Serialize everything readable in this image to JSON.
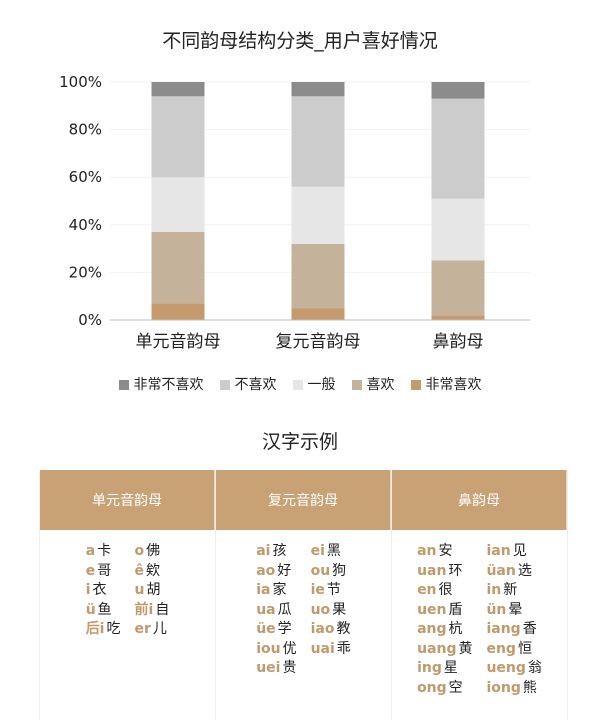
{
  "chart_data": {
    "type": "bar",
    "stacked": true,
    "title": "不同韵母结构分类_用户喜好情况",
    "categories": [
      "单元音韵母",
      "复元音韵母",
      "鼻韵母"
    ],
    "ylim": [
      0,
      100
    ],
    "yticks": [
      "0%",
      "20%",
      "40%",
      "60%",
      "80%",
      "100%"
    ],
    "legend_position": "bottom",
    "series": [
      {
        "name": "非常喜欢",
        "color": "#c59b6e",
        "values": [
          7,
          5,
          2
        ]
      },
      {
        "name": "喜欢",
        "color": "#c4b29b",
        "values": [
          30,
          27,
          23
        ]
      },
      {
        "name": "一般",
        "color": "#e6e6e6",
        "values": [
          23,
          24,
          26
        ]
      },
      {
        "name": "不喜欢",
        "color": "#cccccc",
        "values": [
          34,
          38,
          42
        ]
      },
      {
        "name": "非常不喜欢",
        "color": "#8c8c8c",
        "values": [
          6,
          6,
          7
        ]
      }
    ]
  },
  "legend_order": [
    4,
    3,
    2,
    1,
    0
  ],
  "examples": {
    "title": "汉字示例",
    "columns": [
      {
        "header": "单元音韵母",
        "lists": [
          [
            [
              "a",
              "卡"
            ],
            [
              "e",
              "哥"
            ],
            [
              "i",
              "衣"
            ],
            [
              "ü",
              "鱼"
            ],
            [
              "后i",
              "吃"
            ]
          ],
          [
            [
              "o",
              "佛"
            ],
            [
              "ê",
              "欸"
            ],
            [
              "u",
              "胡"
            ],
            [
              "前i",
              "自"
            ],
            [
              "er",
              "儿"
            ]
          ]
        ]
      },
      {
        "header": "复元音韵母",
        "lists": [
          [
            [
              "ai",
              "孩"
            ],
            [
              "ao",
              "好"
            ],
            [
              "ia",
              "家"
            ],
            [
              "ua",
              "瓜"
            ],
            [
              "üe",
              "学"
            ],
            [
              "iou",
              "优"
            ],
            [
              "uei",
              "贵"
            ]
          ],
          [
            [
              "ei",
              "黑"
            ],
            [
              "ou",
              "狗"
            ],
            [
              "ie",
              "节"
            ],
            [
              "uo",
              "果"
            ],
            [
              "iao",
              "教"
            ],
            [
              "uai",
              "乖"
            ]
          ]
        ]
      },
      {
        "header": "鼻韵母",
        "lists": [
          [
            [
              "an",
              "安"
            ],
            [
              "uan",
              "环"
            ],
            [
              "en",
              "很"
            ],
            [
              "uen",
              "盾"
            ],
            [
              "ang",
              "杭"
            ],
            [
              "uang",
              "黄"
            ],
            [
              "ing",
              "星"
            ],
            [
              "ong",
              "空"
            ]
          ],
          [
            [
              "ian",
              "见"
            ],
            [
              "üan",
              "选"
            ],
            [
              "in",
              "新"
            ],
            [
              "ün",
              "晕"
            ],
            [
              "iang",
              "香"
            ],
            [
              "eng",
              "恒"
            ],
            [
              "ueng",
              "翁"
            ],
            [
              "iong",
              "熊"
            ]
          ]
        ]
      }
    ]
  }
}
